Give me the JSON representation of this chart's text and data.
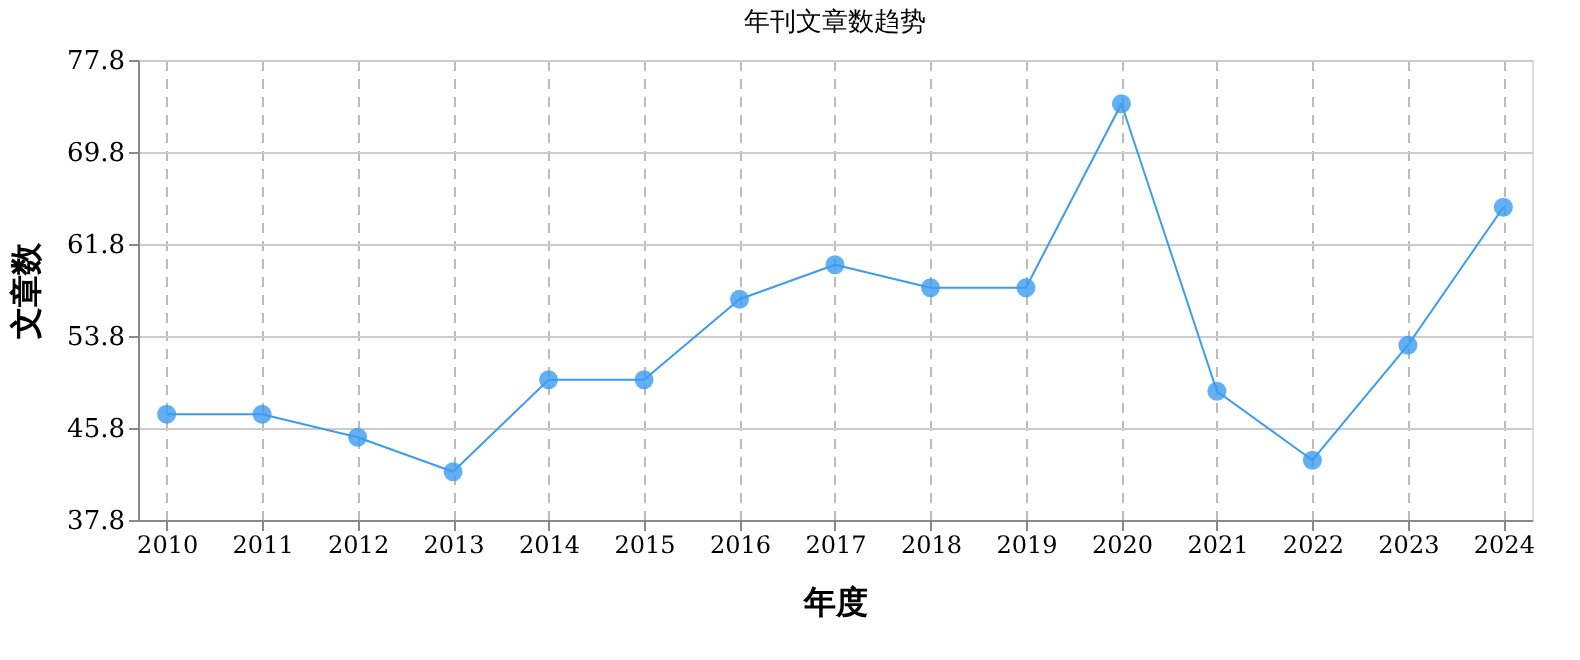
{
  "chart_data": {
    "type": "line",
    "title": "年刊文章数趋势",
    "xlabel": "年度",
    "ylabel": "文章数",
    "categories": [
      "2010",
      "2011",
      "2012",
      "2013",
      "2014",
      "2015",
      "2016",
      "2017",
      "2018",
      "2019",
      "2020",
      "2021",
      "2022",
      "2023",
      "2024"
    ],
    "series": [
      {
        "color": "#3b9cf0",
        "values": [
          47,
          47,
          45,
          42,
          50,
          50,
          57,
          60,
          58,
          58,
          74,
          49,
          43,
          53,
          65
        ]
      }
    ],
    "ylim": [
      37.8,
      77.8
    ],
    "yticks": [
      37.8,
      45.8,
      53.8,
      61.8,
      69.8,
      77.8
    ],
    "grid": true,
    "marker": "circle",
    "line_style": "solid"
  }
}
